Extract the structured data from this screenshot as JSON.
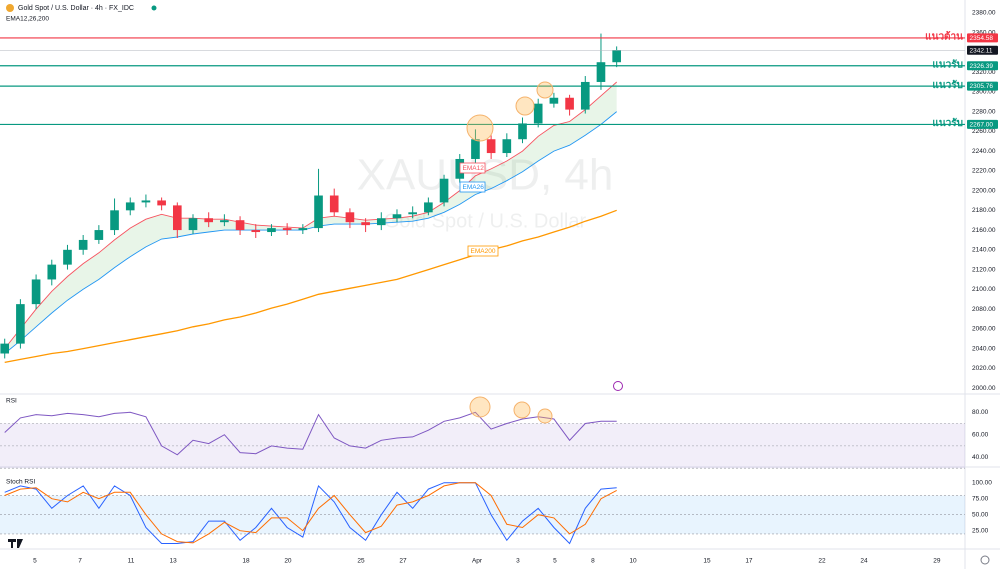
{
  "chart_data": [
    {
      "type": "candlestick",
      "title": "Gold Spot / U.S. Dollar · 4h · FX_IDC",
      "subtitle": "EMA12,26,200",
      "watermark": "XAUUSD, 4h",
      "watermark_subtitle": "Gold Spot / U.S. Dollar",
      "x": [
        0,
        1,
        2,
        3,
        4,
        5,
        6,
        7,
        8,
        9,
        10,
        11,
        12,
        13,
        14,
        15,
        16,
        17,
        18,
        19,
        20,
        21,
        22,
        23,
        24,
        25,
        26,
        27,
        28,
        29,
        30,
        31,
        32,
        33,
        34,
        35,
        36,
        37,
        38,
        39
      ],
      "open": [
        2035,
        2045,
        2085,
        2110,
        2125,
        2140,
        2150,
        2160,
        2180,
        2188,
        2190,
        2185,
        2160,
        2172,
        2168,
        2170,
        2160,
        2158,
        2162,
        2160,
        2162,
        2195,
        2178,
        2168,
        2165,
        2172,
        2176,
        2178,
        2188,
        2212,
        2232,
        2252,
        2238,
        2252,
        2268,
        2288,
        2294,
        2282,
        2310,
        2330
      ],
      "high": [
        2050,
        2090,
        2115,
        2130,
        2145,
        2155,
        2165,
        2192,
        2193,
        2196,
        2193,
        2188,
        2176,
        2178,
        2176,
        2174,
        2166,
        2166,
        2167,
        2166,
        2222,
        2202,
        2182,
        2172,
        2178,
        2181,
        2184,
        2193,
        2216,
        2237,
        2262,
        2256,
        2258,
        2274,
        2293,
        2299,
        2297,
        2316,
        2359,
        2346
      ],
      "low": [
        2030,
        2040,
        2080,
        2104,
        2120,
        2135,
        2146,
        2155,
        2175,
        2183,
        2180,
        2152,
        2156,
        2163,
        2164,
        2155,
        2152,
        2154,
        2155,
        2156,
        2158,
        2174,
        2162,
        2158,
        2160,
        2168,
        2172,
        2175,
        2184,
        2208,
        2228,
        2232,
        2234,
        2248,
        2264,
        2284,
        2276,
        2278,
        2302,
        2325
      ],
      "close": [
        2045,
        2085,
        2110,
        2125,
        2140,
        2150,
        2160,
        2180,
        2188,
        2190,
        2185,
        2160,
        2172,
        2168,
        2170,
        2160,
        2158,
        2162,
        2160,
        2162,
        2195,
        2178,
        2168,
        2165,
        2172,
        2176,
        2178,
        2188,
        2212,
        2232,
        2252,
        2238,
        2252,
        2268,
        2288,
        2294,
        2282,
        2310,
        2330,
        2342
      ],
      "up_color": "#089981",
      "down_color": "#f23645",
      "series": [
        {
          "name": "EMA12",
          "color": "#f7525f",
          "values": [
            2040,
            2060,
            2080,
            2098,
            2113,
            2126,
            2137,
            2150,
            2162,
            2171,
            2176,
            2172,
            2172,
            2171,
            2171,
            2168,
            2165,
            2164,
            2163,
            2162,
            2172,
            2174,
            2172,
            2170,
            2171,
            2172,
            2174,
            2178,
            2188,
            2200,
            2215,
            2222,
            2230,
            2240,
            2255,
            2266,
            2270,
            2282,
            2296,
            2310
          ]
        },
        {
          "name": "EMA26",
          "color": "#2196f3",
          "values": [
            2035,
            2048,
            2062,
            2076,
            2089,
            2100,
            2110,
            2122,
            2133,
            2143,
            2151,
            2153,
            2156,
            2158,
            2160,
            2160,
            2160,
            2160,
            2160,
            2160,
            2164,
            2166,
            2166,
            2166,
            2167,
            2168,
            2169,
            2172,
            2178,
            2186,
            2196,
            2202,
            2210,
            2219,
            2230,
            2240,
            2246,
            2256,
            2267,
            2280
          ]
        },
        {
          "name": "EMA200",
          "color": "#ff9800",
          "values": [
            2026,
            2029,
            2032,
            2035,
            2037,
            2040,
            2043,
            2046,
            2049,
            2052,
            2055,
            2058,
            2062,
            2065,
            2069,
            2072,
            2076,
            2081,
            2085,
            2090,
            2095,
            2098,
            2101,
            2104,
            2107,
            2110,
            2115,
            2120,
            2125,
            2130,
            2135,
            2140,
            2144,
            2149,
            2153,
            2158,
            2163,
            2169,
            2174,
            2180
          ]
        }
      ],
      "levels": [
        {
          "name": "แนวต้าน",
          "value": 2354.58,
          "color": "#f23645"
        },
        {
          "name": "แนวรับ",
          "value": 2326.39,
          "color": "#089981"
        },
        {
          "name": "แนวรับ",
          "value": 2305.76,
          "color": "#089981"
        },
        {
          "name": "แนวรับ",
          "value": 2267.0,
          "value_label": "2267.00",
          "color": "#089981"
        }
      ],
      "last_price": 2342.11,
      "xlim": [
        -0.3,
        61.2
      ],
      "ylim": [
        1995,
        2393
      ],
      "xticks": [
        {
          "value": 1.93,
          "label": "5"
        },
        {
          "value": 4.8,
          "label": "7"
        },
        {
          "value": 8.05,
          "label": "11"
        },
        {
          "value": 10.73,
          "label": "13"
        },
        {
          "value": 15.38,
          "label": "18"
        },
        {
          "value": 18.05,
          "label": "20"
        },
        {
          "value": 22.71,
          "label": "25"
        },
        {
          "value": 25.38,
          "label": "27"
        },
        {
          "value": 30.1,
          "label": "Apr"
        },
        {
          "value": 32.71,
          "label": "3"
        },
        {
          "value": 35.07,
          "label": "5"
        },
        {
          "value": 37.49,
          "label": "8"
        },
        {
          "value": 40.04,
          "label": "10"
        },
        {
          "value": 44.76,
          "label": "15"
        },
        {
          "value": 47.43,
          "label": "17"
        },
        {
          "value": 52.09,
          "label": "22"
        },
        {
          "value": 54.76,
          "label": "24"
        },
        {
          "value": 59.41,
          "label": "29"
        }
      ],
      "yticks": [
        {
          "value": 2000,
          "label": "2000.00"
        },
        {
          "value": 2020,
          "label": "2020.00"
        },
        {
          "value": 2040,
          "label": "2040.00"
        },
        {
          "value": 2060,
          "label": "2060.00"
        },
        {
          "value": 2080,
          "label": "2080.00"
        },
        {
          "value": 2100,
          "label": "2100.00"
        },
        {
          "value": 2120,
          "label": "2120.00"
        },
        {
          "value": 2140,
          "label": "2140.00"
        },
        {
          "value": 2160,
          "label": "2160.00"
        },
        {
          "value": 2180,
          "label": "2180.00"
        },
        {
          "value": 2200,
          "label": "2200.00"
        },
        {
          "value": 2220,
          "label": "2220.00"
        },
        {
          "value": 2240,
          "label": "2240.00"
        },
        {
          "value": 2260,
          "label": "2260.00"
        },
        {
          "value": 2280,
          "label": "2280.00"
        },
        {
          "value": 2300,
          "label": "2300.00"
        },
        {
          "value": 2320,
          "label": "2320.00"
        },
        {
          "value": 2340,
          "label": "2340.00"
        },
        {
          "value": 2360,
          "label": "2360.00"
        },
        {
          "value": 2380,
          "label": "2380.00"
        }
      ],
      "grid": false
    },
    {
      "type": "line",
      "title": "RSI",
      "x": [
        0,
        1,
        2,
        3,
        4,
        5,
        6,
        7,
        8,
        9,
        10,
        11,
        12,
        13,
        14,
        15,
        16,
        17,
        18,
        19,
        20,
        21,
        22,
        23,
        24,
        25,
        26,
        27,
        28,
        29,
        30,
        31,
        32,
        33,
        34,
        35,
        36,
        37,
        38,
        39
      ],
      "series": [
        {
          "color": "#7e57c2",
          "values": [
            62,
            75,
            78,
            77,
            79,
            78,
            76,
            79,
            80,
            76,
            50,
            42,
            55,
            52,
            60,
            44,
            43,
            50,
            48,
            47,
            78,
            57,
            50,
            48,
            55,
            57,
            58,
            64,
            72,
            75,
            80,
            65,
            70,
            74,
            76,
            74,
            55,
            70,
            72,
            72
          ]
        }
      ],
      "band": [
        30,
        70
      ],
      "band_color": "rgba(126,87,194,0.1)",
      "hlines": [
        70,
        50,
        30
      ],
      "xlim": [
        -0.3,
        61.2
      ],
      "ylim": [
        32,
        95.5
      ],
      "yticks": [
        {
          "value": 40,
          "label": "40.00"
        },
        {
          "value": 60,
          "label": "60.00"
        },
        {
          "value": 80,
          "label": "80.00"
        }
      ]
    },
    {
      "type": "line",
      "title": "Stoch RSI",
      "x": [
        0,
        1,
        2,
        3,
        4,
        5,
        6,
        7,
        8,
        9,
        10,
        11,
        12,
        13,
        14,
        15,
        16,
        17,
        18,
        19,
        20,
        21,
        22,
        23,
        24,
        25,
        26,
        27,
        28,
        29,
        30,
        31,
        32,
        33,
        34,
        35,
        36,
        37,
        38,
        39
      ],
      "series": [
        {
          "color": "#2962ff",
          "values": [
            85,
            95,
            90,
            60,
            80,
            95,
            60,
            95,
            80,
            30,
            5,
            5,
            8,
            40,
            40,
            10,
            30,
            60,
            30,
            15,
            95,
            70,
            30,
            10,
            50,
            85,
            60,
            90,
            100,
            100,
            100,
            50,
            10,
            40,
            60,
            30,
            5,
            60,
            90,
            92
          ]
        },
        {
          "color": "#ff6d00",
          "values": [
            80,
            90,
            92,
            75,
            70,
            85,
            75,
            85,
            85,
            50,
            20,
            8,
            6,
            20,
            38,
            25,
            22,
            45,
            45,
            25,
            60,
            80,
            50,
            22,
            32,
            65,
            70,
            80,
            95,
            100,
            100,
            80,
            35,
            30,
            50,
            45,
            20,
            35,
            75,
            88
          ]
        }
      ],
      "band": [
        20,
        80
      ],
      "band_color": "rgba(33,150,243,0.1)",
      "hlines": [
        80,
        50,
        20
      ],
      "xlim": [
        -0.3,
        61.2
      ],
      "ylim": [
        -2,
        123
      ],
      "yticks": [
        {
          "value": 25,
          "label": "25.00"
        },
        {
          "value": 50,
          "label": "50.00"
        },
        {
          "value": 75,
          "label": "75.00"
        },
        {
          "value": 100,
          "label": "100.00"
        }
      ]
    }
  ]
}
